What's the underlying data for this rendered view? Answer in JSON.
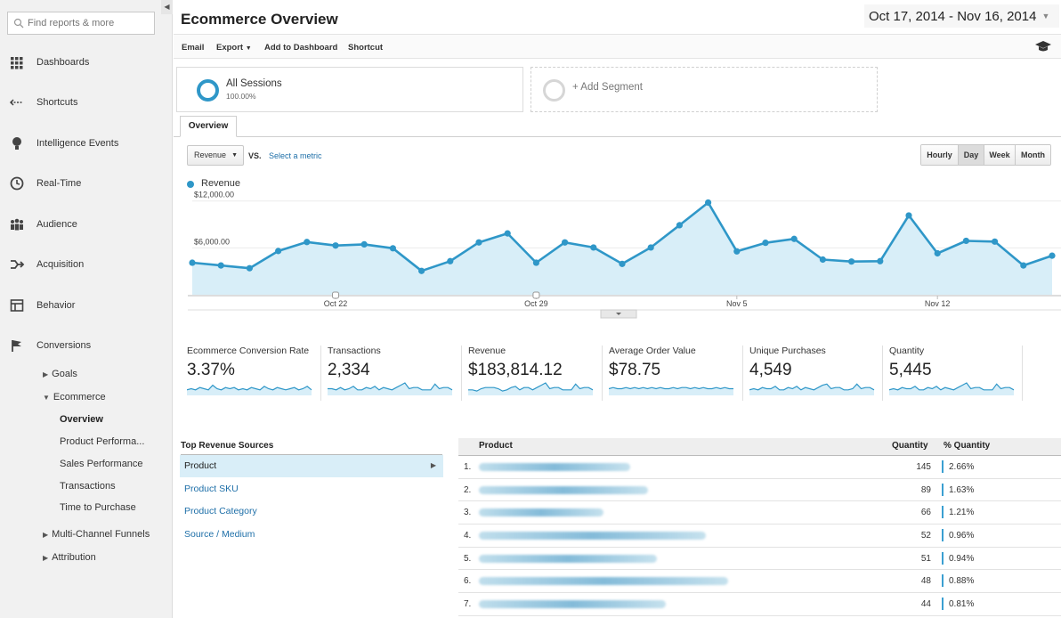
{
  "sidebar": {
    "search_placeholder": "Find reports & more",
    "nav": [
      {
        "label": "Dashboards",
        "icon": "dashboards-icon"
      },
      {
        "label": "Shortcuts",
        "icon": "shortcuts-icon"
      },
      {
        "label": "Intelligence Events",
        "icon": "lightbulb-icon"
      },
      {
        "label": "Real-Time",
        "icon": "clock-icon"
      },
      {
        "label": "Audience",
        "icon": "people-icon"
      },
      {
        "label": "Acquisition",
        "icon": "acquisition-icon"
      },
      {
        "label": "Behavior",
        "icon": "behavior-icon"
      },
      {
        "label": "Conversions",
        "icon": "flag-icon"
      }
    ],
    "sub": {
      "goals": "Goals",
      "ecommerce": "Ecommerce",
      "overview": "Overview",
      "product_performance": "Product Performa...",
      "sales_performance": "Sales Performance",
      "transactions": "Transactions",
      "time_to_purchase": "Time to Purchase",
      "multi_channel": "Multi-Channel Funnels",
      "attribution": "Attribution"
    }
  },
  "header": {
    "title": "Ecommerce Overview",
    "date_range": "Oct 17, 2014 - Nov 16, 2014"
  },
  "toolbar": {
    "email": "Email",
    "export": "Export",
    "add_dashboard": "Add to Dashboard",
    "shortcut": "Shortcut"
  },
  "segments": {
    "all_name": "All Sessions",
    "all_pct": "100.00%",
    "add_label": "+ Add Segment"
  },
  "tabs": {
    "overview": "Overview"
  },
  "controls": {
    "metric": "Revenue",
    "vs": "VS.",
    "select_metric": "Select a metric",
    "periods": [
      "Hourly",
      "Day",
      "Week",
      "Month"
    ],
    "active_period": "Day"
  },
  "colors": {
    "accent": "#2f97c8",
    "area_fill": "#d8eef8",
    "link": "#1e6fa8"
  },
  "chart_data": {
    "type": "area",
    "series_name": "Revenue",
    "y_tick_labels": [
      "$12,000.00",
      "$6,000.00"
    ],
    "y_ticks": [
      12000,
      6000
    ],
    "ylim": [
      0,
      15500
    ],
    "x_tick_labels": [
      "Oct 22",
      "Oct 29",
      "Nov 5",
      "Nov 12"
    ],
    "x_tick_index": [
      5,
      12,
      19,
      26
    ],
    "dates": [
      "Oct 17",
      "Oct 18",
      "Oct 19",
      "Oct 20",
      "Oct 21",
      "Oct 22",
      "Oct 23",
      "Oct 24",
      "Oct 25",
      "Oct 26",
      "Oct 27",
      "Oct 28",
      "Oct 29",
      "Oct 30",
      "Oct 31",
      "Nov 1",
      "Nov 2",
      "Nov 3",
      "Nov 4",
      "Nov 5",
      "Nov 6",
      "Nov 7",
      "Nov 8",
      "Nov 9",
      "Nov 10",
      "Nov 11",
      "Nov 12",
      "Nov 13",
      "Nov 14",
      "Nov 15",
      "Nov 16"
    ],
    "values": [
      4100,
      3750,
      3400,
      5600,
      6750,
      6300,
      6450,
      5950,
      3050,
      4300,
      6700,
      7850,
      4100,
      6700,
      6050,
      3950,
      6050,
      8900,
      11800,
      5550,
      6650,
      7150,
      4500,
      4250,
      4300,
      10150,
      5300,
      6900,
      6800,
      3750,
      5000
    ]
  },
  "scorecards": [
    {
      "label": "Ecommerce Conversion Rate",
      "value": "3.37%"
    },
    {
      "label": "Transactions",
      "value": "2,334"
    },
    {
      "label": "Revenue",
      "value": "$183,814.12"
    },
    {
      "label": "Average Order Value",
      "value": "$78.75"
    },
    {
      "label": "Unique Purchases",
      "value": "4,549"
    },
    {
      "label": "Quantity",
      "value": "5,445"
    }
  ],
  "sources": {
    "title": "Top Revenue Sources",
    "items": [
      "Product",
      "Product SKU",
      "Product Category",
      "Source / Medium"
    ]
  },
  "products": {
    "col_product": "Product",
    "col_qty": "Quantity",
    "col_pct": "% Quantity",
    "rows": [
      {
        "rank": "1.",
        "qty": "145",
        "pct": "2.66%",
        "share": 2.66
      },
      {
        "rank": "2.",
        "qty": "89",
        "pct": "1.63%",
        "share": 1.63
      },
      {
        "rank": "3.",
        "qty": "66",
        "pct": "1.21%",
        "share": 1.21
      },
      {
        "rank": "4.",
        "qty": "52",
        "pct": "0.96%",
        "share": 0.96
      },
      {
        "rank": "5.",
        "qty": "51",
        "pct": "0.94%",
        "share": 0.94
      },
      {
        "rank": "6.",
        "qty": "48",
        "pct": "0.88%",
        "share": 0.88
      },
      {
        "rank": "7.",
        "qty": "44",
        "pct": "0.81%",
        "share": 0.81
      }
    ]
  }
}
